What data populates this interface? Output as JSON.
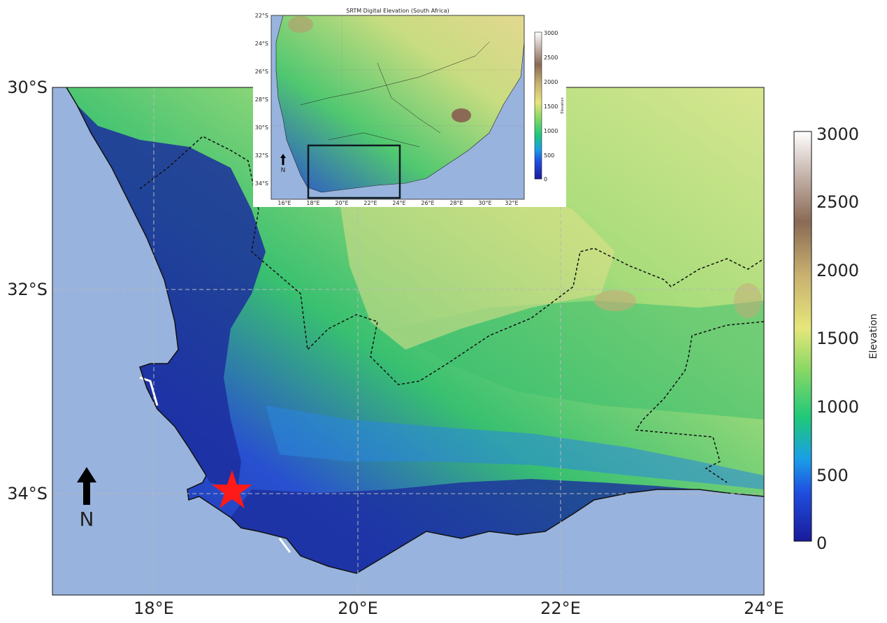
{
  "main_map": {
    "lat_labels": [
      "30°S",
      "32°S",
      "34°S"
    ],
    "lon_labels": [
      "18°E",
      "20°E",
      "22°E",
      "24°E"
    ],
    "north_label": "N",
    "colorbar": {
      "label": "Elevation",
      "ticks": [
        "3000",
        "2500",
        "2000",
        "1500",
        "1000",
        "500",
        "0"
      ],
      "range": [
        0,
        3000
      ]
    }
  },
  "inset_map": {
    "title": "SRTM Digital Elevation (South Africa)",
    "lat_labels": [
      "22°S",
      "24°S",
      "26°S",
      "28°S",
      "30°S",
      "32°S",
      "34°S"
    ],
    "lon_labels": [
      "16°E",
      "18°E",
      "20°E",
      "22°E",
      "24°E",
      "26°E",
      "28°E",
      "30°E",
      "32°E"
    ],
    "north_label": "N",
    "colorbar": {
      "label": "Elevation",
      "ticks": [
        "3000",
        "2500",
        "2000",
        "1500",
        "1000",
        "500",
        "0"
      ]
    }
  },
  "colors": {
    "ocean": "#98b3dd",
    "lowland": "#1e32b4",
    "mid": "#3ec070",
    "plateau": "#a6dc7a",
    "high": "#e8dc8c",
    "peak": "#8a6a55",
    "marker": "#ff1a1a"
  },
  "marker": {
    "symbol": "star",
    "lon": 18.8,
    "lat": -34.0
  }
}
